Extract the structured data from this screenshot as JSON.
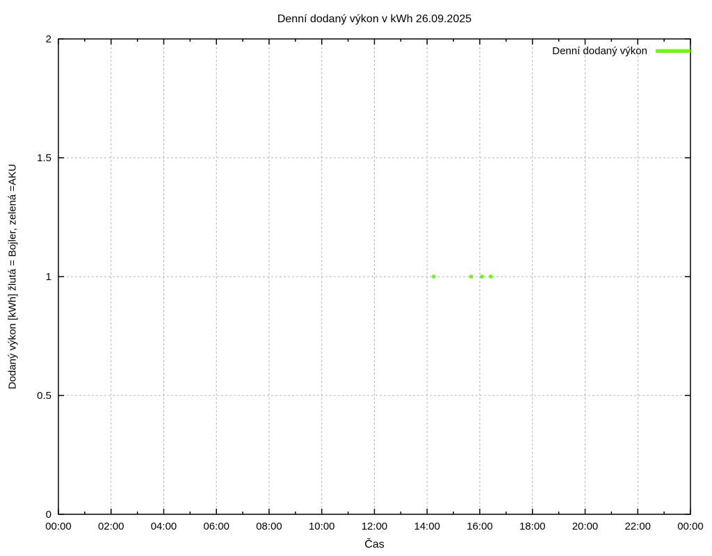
{
  "title": "Denní dodaný výkon v kWh 26.09.2025",
  "xlabel": "Čas",
  "ylabel": "Dodaný výkon [kWh]  žlutá = Bojler, zelená =AKU",
  "legend": {
    "label": "Denní dodaný výkon",
    "color": "#66ff00",
    "position": "top-right"
  },
  "colors": {
    "background": "#ffffff",
    "axis": "#000000",
    "grid": "#b3b3b3",
    "text": "#000000",
    "series_green": "#66ff00"
  },
  "chart_data": {
    "type": "scatter",
    "title": "Denní dodaný výkon v kWh 26.09.2025",
    "xlabel": "Čas",
    "ylabel": "Dodaný výkon [kWh]  žlutá = Bojler, zelená =AKU",
    "x_unit": "hours",
    "xlim": [
      0,
      24
    ],
    "ylim": [
      0,
      2
    ],
    "x_major_ticks": [
      0,
      2,
      4,
      6,
      8,
      10,
      12,
      14,
      16,
      18,
      20,
      22,
      24
    ],
    "x_major_tick_labels": [
      "00:00",
      "02:00",
      "04:00",
      "06:00",
      "08:00",
      "10:00",
      "12:00",
      "14:00",
      "16:00",
      "18:00",
      "20:00",
      "22:00",
      "00:00"
    ],
    "x_minor_ticks": [
      1,
      3,
      5,
      7,
      9,
      11,
      13,
      15,
      17,
      19,
      21,
      23
    ],
    "y_ticks": [
      0,
      0.5,
      1,
      1.5,
      2
    ],
    "y_tick_labels": [
      "0",
      "0.5",
      "1",
      "1.5",
      "2"
    ],
    "grid": true,
    "grid_style": "dashed",
    "legend_position": "top-right",
    "series": [
      {
        "name": "Denní dodaný výkon",
        "color": "#66ff00",
        "marker": "square",
        "marker_size": 5,
        "points": [
          {
            "time": "14:15",
            "hours": 14.25,
            "value": 1.0
          },
          {
            "time": "15:40",
            "hours": 15.67,
            "value": 1.0
          },
          {
            "time": "16:05",
            "hours": 16.08,
            "value": 1.0
          },
          {
            "time": "16:25",
            "hours": 16.42,
            "value": 1.0
          }
        ]
      }
    ]
  }
}
